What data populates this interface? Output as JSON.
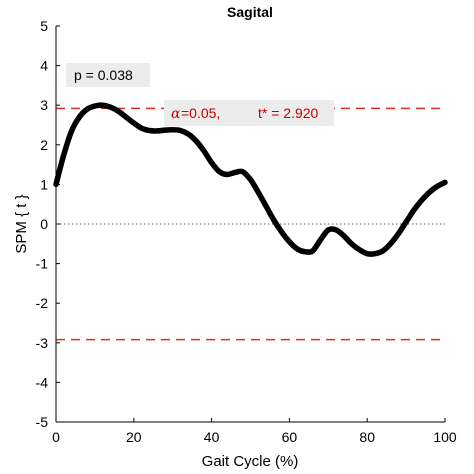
{
  "chart_data": {
    "type": "line",
    "title": "Sagital",
    "xlabel": "Gait Cycle (%)",
    "ylabel": "SPM { t }",
    "xlim": [
      0,
      100
    ],
    "ylim": [
      -5,
      5
    ],
    "xticks": [
      0,
      20,
      40,
      60,
      80,
      100
    ],
    "yticks": [
      -5,
      -4,
      -3,
      -2,
      -1,
      0,
      1,
      2,
      3,
      4,
      5
    ],
    "grid": false,
    "threshold": 2.92,
    "threshold_color": "#e0301e",
    "zero_line_color": "#555555",
    "line_color": "#000000",
    "series": [
      {
        "x": [
          0,
          2,
          4,
          6,
          8,
          10,
          12,
          14,
          16,
          18,
          20,
          22,
          24,
          26,
          28,
          30,
          32,
          34,
          36,
          38,
          40,
          42,
          44,
          46,
          48,
          50,
          52,
          54,
          56,
          58,
          60,
          62,
          64,
          66,
          68,
          70,
          72,
          74,
          76,
          78,
          80,
          82,
          84,
          86,
          88,
          90,
          92,
          94,
          96,
          98,
          100
        ],
        "y": [
          1.0,
          1.75,
          2.35,
          2.7,
          2.9,
          2.98,
          3.0,
          2.95,
          2.85,
          2.7,
          2.55,
          2.42,
          2.36,
          2.35,
          2.37,
          2.38,
          2.36,
          2.27,
          2.1,
          1.85,
          1.55,
          1.32,
          1.25,
          1.3,
          1.32,
          1.12,
          0.8,
          0.45,
          0.1,
          -0.2,
          -0.45,
          -0.63,
          -0.7,
          -0.68,
          -0.4,
          -0.15,
          -0.15,
          -0.3,
          -0.5,
          -0.65,
          -0.75,
          -0.75,
          -0.68,
          -0.5,
          -0.25,
          0.05,
          0.35,
          0.6,
          0.8,
          0.95,
          1.05
        ]
      }
    ],
    "annotations": {
      "p_value": "p = 0.038",
      "alpha_symbol": "α",
      "alpha_text": " =0.05,",
      "tstar_text": "t* = 2.920"
    }
  }
}
